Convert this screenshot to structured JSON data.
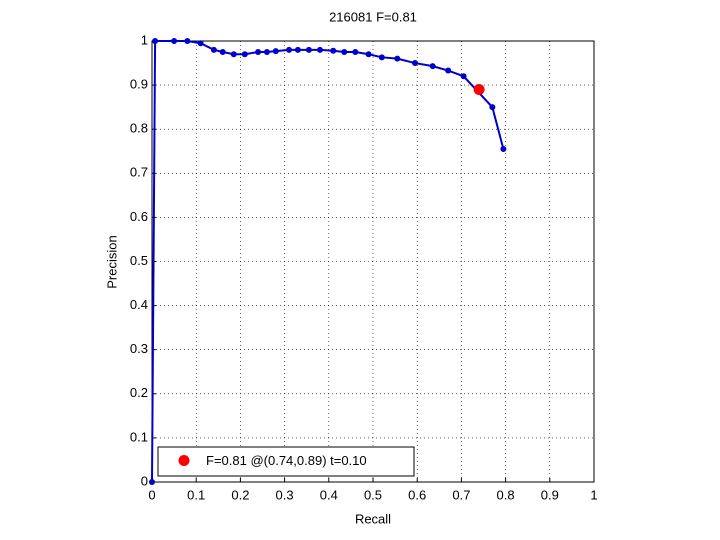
{
  "chart_data": {
    "type": "line",
    "title": "216081 F=0.81",
    "xlabel": "Recall",
    "ylabel": "Precision",
    "series": [
      {
        "color": "#0000cc",
        "x": [
          0,
          0.007,
          0.05,
          0.08,
          0.11,
          0.14,
          0.16,
          0.185,
          0.21,
          0.24,
          0.26,
          0.28,
          0.31,
          0.33,
          0.355,
          0.38,
          0.41,
          0.435,
          0.46,
          0.49,
          0.52,
          0.555,
          0.595,
          0.635,
          0.67,
          0.705,
          0.77,
          0.795
        ],
        "values": [
          0,
          1.0,
          1.0,
          1.0,
          0.995,
          0.98,
          0.975,
          0.97,
          0.97,
          0.975,
          0.975,
          0.977,
          0.98,
          0.98,
          0.98,
          0.98,
          0.978,
          0.975,
          0.975,
          0.97,
          0.963,
          0.96,
          0.95,
          0.943,
          0.933,
          0.92,
          0.85,
          0.755
        ]
      },
      {
        "name": "F=0.81 @(0.74,0.89) t=0.10",
        "color": "#ff0000",
        "x": [
          0.74
        ],
        "values": [
          0.89
        ]
      }
    ],
    "xlim": [
      0,
      1
    ],
    "ylim": [
      0,
      1
    ],
    "xticks": [
      0,
      0.1,
      0.2,
      0.3,
      0.4,
      0.5,
      0.6,
      0.7,
      0.8,
      0.9,
      1
    ],
    "yticks": [
      0,
      0.1,
      0.2,
      0.3,
      0.4,
      0.5,
      0.6,
      0.7,
      0.8,
      0.9,
      1
    ],
    "grid": true,
    "legend": "lower left"
  }
}
